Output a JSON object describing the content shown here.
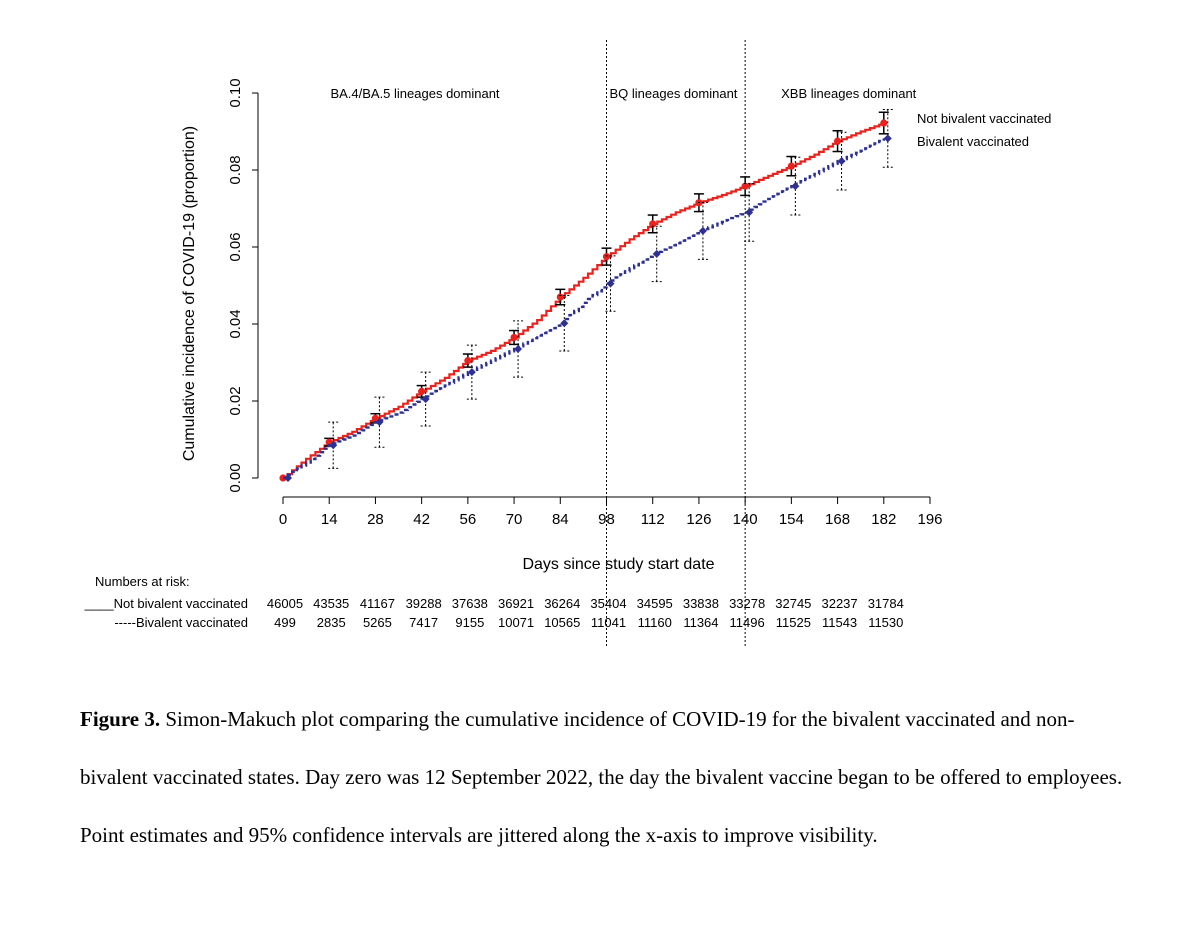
{
  "chart_data": {
    "type": "line",
    "xlabel": "Days since study start date",
    "ylabel": "Cumulative incidence of COVID-19 (proportion)",
    "xlim": [
      0,
      196
    ],
    "ylim": [
      0,
      0.1
    ],
    "x_ticks": [
      0,
      14,
      28,
      42,
      56,
      70,
      84,
      98,
      112,
      126,
      140,
      154,
      168,
      182,
      196
    ],
    "y_ticks": [
      "0.00",
      "0.02",
      "0.04",
      "0.06",
      "0.08",
      "0.10"
    ],
    "vertical_lines": [
      98,
      140
    ],
    "period_labels": [
      {
        "text": "BA.4/BA.5 lineages dominant",
        "x_range": [
          0,
          98
        ]
      },
      {
        "text": "BQ lineages dominant",
        "x_range": [
          98,
          140
        ]
      },
      {
        "text": "XBB lineages dominant",
        "x_range": [
          140,
          196
        ]
      }
    ],
    "legend_position": "top-right",
    "series": [
      {
        "name": "Not bivalent vaccinated",
        "color": "#e8231e",
        "line_style": "solid",
        "curve": [
          [
            0,
            0
          ],
          [
            7,
            0.005
          ],
          [
            14,
            0.0093
          ],
          [
            21,
            0.012
          ],
          [
            28,
            0.0155
          ],
          [
            35,
            0.0185
          ],
          [
            42,
            0.0225
          ],
          [
            49,
            0.026
          ],
          [
            56,
            0.0305
          ],
          [
            63,
            0.033
          ],
          [
            70,
            0.0365
          ],
          [
            77,
            0.041
          ],
          [
            84,
            0.047
          ],
          [
            91,
            0.052
          ],
          [
            98,
            0.0575
          ],
          [
            105,
            0.062
          ],
          [
            112,
            0.066
          ],
          [
            119,
            0.069
          ],
          [
            126,
            0.0715
          ],
          [
            133,
            0.0735
          ],
          [
            140,
            0.0758
          ],
          [
            147,
            0.0785
          ],
          [
            154,
            0.081
          ],
          [
            161,
            0.084
          ],
          [
            168,
            0.0875
          ],
          [
            175,
            0.09
          ],
          [
            182,
            0.0922
          ]
        ],
        "points": [
          {
            "x": 0,
            "y": 0.0,
            "lo": 0.0,
            "hi": 0.0
          },
          {
            "x": 14,
            "y": 0.0093,
            "lo": 0.0083,
            "hi": 0.0103
          },
          {
            "x": 28,
            "y": 0.0155,
            "lo": 0.0143,
            "hi": 0.0167
          },
          {
            "x": 42,
            "y": 0.0225,
            "lo": 0.021,
            "hi": 0.024
          },
          {
            "x": 56,
            "y": 0.0305,
            "lo": 0.0288,
            "hi": 0.0322
          },
          {
            "x": 70,
            "y": 0.0365,
            "lo": 0.0347,
            "hi": 0.0383
          },
          {
            "x": 84,
            "y": 0.047,
            "lo": 0.045,
            "hi": 0.049
          },
          {
            "x": 98,
            "y": 0.0575,
            "lo": 0.0553,
            "hi": 0.0597
          },
          {
            "x": 112,
            "y": 0.066,
            "lo": 0.0637,
            "hi": 0.0683
          },
          {
            "x": 126,
            "y": 0.0715,
            "lo": 0.0692,
            "hi": 0.0738
          },
          {
            "x": 140,
            "y": 0.0758,
            "lo": 0.0734,
            "hi": 0.0782
          },
          {
            "x": 154,
            "y": 0.081,
            "lo": 0.0785,
            "hi": 0.0835
          },
          {
            "x": 168,
            "y": 0.0875,
            "lo": 0.0848,
            "hi": 0.0902
          },
          {
            "x": 182,
            "y": 0.0922,
            "lo": 0.0894,
            "hi": 0.095
          }
        ]
      },
      {
        "name": "Bivalent vaccinated",
        "color": "#2e3192",
        "line_style": "dashed",
        "curve": [
          [
            0,
            0
          ],
          [
            7,
            0.004
          ],
          [
            14,
            0.0085
          ],
          [
            21,
            0.011
          ],
          [
            28,
            0.0145
          ],
          [
            35,
            0.017
          ],
          [
            42,
            0.0205
          ],
          [
            49,
            0.024
          ],
          [
            56,
            0.0275
          ],
          [
            63,
            0.0305
          ],
          [
            70,
            0.0335
          ],
          [
            77,
            0.037
          ],
          [
            84,
            0.0402
          ],
          [
            91,
            0.0455
          ],
          [
            98,
            0.0505
          ],
          [
            105,
            0.0545
          ],
          [
            112,
            0.0582
          ],
          [
            119,
            0.061
          ],
          [
            126,
            0.0642
          ],
          [
            133,
            0.0665
          ],
          [
            140,
            0.069
          ],
          [
            147,
            0.0725
          ],
          [
            154,
            0.0758
          ],
          [
            161,
            0.079
          ],
          [
            168,
            0.0823
          ],
          [
            175,
            0.085
          ],
          [
            182,
            0.0882
          ]
        ],
        "points": [
          {
            "x": 0,
            "y": 0.0,
            "lo": 0.0,
            "hi": 0.0
          },
          {
            "x": 14,
            "y": 0.0085,
            "lo": 0.0025,
            "hi": 0.0145
          },
          {
            "x": 28,
            "y": 0.0145,
            "lo": 0.008,
            "hi": 0.021
          },
          {
            "x": 42,
            "y": 0.0205,
            "lo": 0.0135,
            "hi": 0.0275
          },
          {
            "x": 56,
            "y": 0.0275,
            "lo": 0.0205,
            "hi": 0.0345
          },
          {
            "x": 70,
            "y": 0.0335,
            "lo": 0.0262,
            "hi": 0.0408
          },
          {
            "x": 84,
            "y": 0.0402,
            "lo": 0.033,
            "hi": 0.0474
          },
          {
            "x": 98,
            "y": 0.0505,
            "lo": 0.0433,
            "hi": 0.0577
          },
          {
            "x": 112,
            "y": 0.0582,
            "lo": 0.051,
            "hi": 0.0654
          },
          {
            "x": 126,
            "y": 0.0642,
            "lo": 0.0568,
            "hi": 0.0716
          },
          {
            "x": 140,
            "y": 0.069,
            "lo": 0.0615,
            "hi": 0.0765
          },
          {
            "x": 154,
            "y": 0.0758,
            "lo": 0.0683,
            "hi": 0.0833
          },
          {
            "x": 168,
            "y": 0.0823,
            "lo": 0.0748,
            "hi": 0.0898
          },
          {
            "x": 182,
            "y": 0.0882,
            "lo": 0.0807,
            "hi": 0.0957
          }
        ]
      }
    ],
    "risk_table": {
      "title": "Numbers at risk:",
      "rows": [
        {
          "label": "Not bivalent vaccinated",
          "marker": "____",
          "color": "#e8231e",
          "values": [
            "46005",
            "43535",
            "41167",
            "39288",
            "37638",
            "36921",
            "36264",
            "35404",
            "34595",
            "33838",
            "33278",
            "32745",
            "32237",
            "31784"
          ]
        },
        {
          "label": "Bivalent vaccinated",
          "marker": "-----",
          "color": "#2e3192",
          "values": [
            "499",
            "2835",
            "5265",
            "7417",
            "9155",
            "10071",
            "10565",
            "11041",
            "11160",
            "11364",
            "11496",
            "11525",
            "11543",
            "11530"
          ]
        }
      ]
    }
  },
  "caption": {
    "label": "Figure 3.",
    "text": " Simon-Makuch plot comparing the cumulative incidence of COVID-19 for the bivalent vaccinated and non-bivalent vaccinated states. Day zero was 12 September 2022, the day the bivalent vaccine began to be offered to employees. Point estimates and 95% confidence intervals are jittered along the x-axis to improve visibility."
  }
}
